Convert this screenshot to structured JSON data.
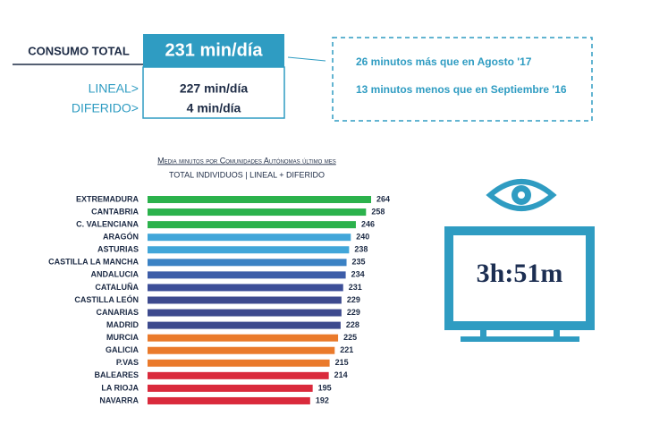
{
  "summary": {
    "total_label": "CONSUMO TOTAL",
    "total_value": "231 min/día",
    "lineal_label": "LINEAL>",
    "lineal_value": "227 min/día",
    "diferido_label": "DIFERIDO>",
    "diferido_value": "4 min/día",
    "comparisons": [
      "26 minutos más que en Agosto '17",
      "13 minutos menos que en Septiembre '16"
    ],
    "tv_time": "3h:51m"
  },
  "chart_data": {
    "type": "hbar",
    "title": "Media minutos por Comunidades Autónomas último mes",
    "subtitle": "TOTAL INDIVIDUOS  | LINEAL + DIFERIDO",
    "categories": [
      "EXTREMADURA",
      "CANTABRIA",
      "C. VALENCIANA",
      "ARAGÓN",
      "ASTURIAS",
      "CASTILLA LA MANCHA",
      "ANDALUCIA",
      "CATALUÑA",
      "CASTILLA LEÓN",
      "CANARIAS",
      "MADRID",
      "MURCIA",
      "GALICIA",
      "P.VAS",
      "BALEARES",
      "LA RIOJA",
      "NAVARRA"
    ],
    "values": [
      264,
      258,
      246,
      240,
      238,
      235,
      234,
      231,
      229,
      229,
      228,
      225,
      221,
      215,
      214,
      195,
      192
    ],
    "colors": [
      "#2bb24c",
      "#2bb24c",
      "#2bb24c",
      "#41a6d9",
      "#41a6d9",
      "#3b82c4",
      "#3d5da8",
      "#3d4f98",
      "#3d4a8e",
      "#3d4a8e",
      "#3d4a8e",
      "#ea7a2b",
      "#ea7a2b",
      "#ea7a2b",
      "#da2a3c",
      "#da2a3c",
      "#da2a3c"
    ],
    "xlim": [
      0,
      264
    ]
  }
}
